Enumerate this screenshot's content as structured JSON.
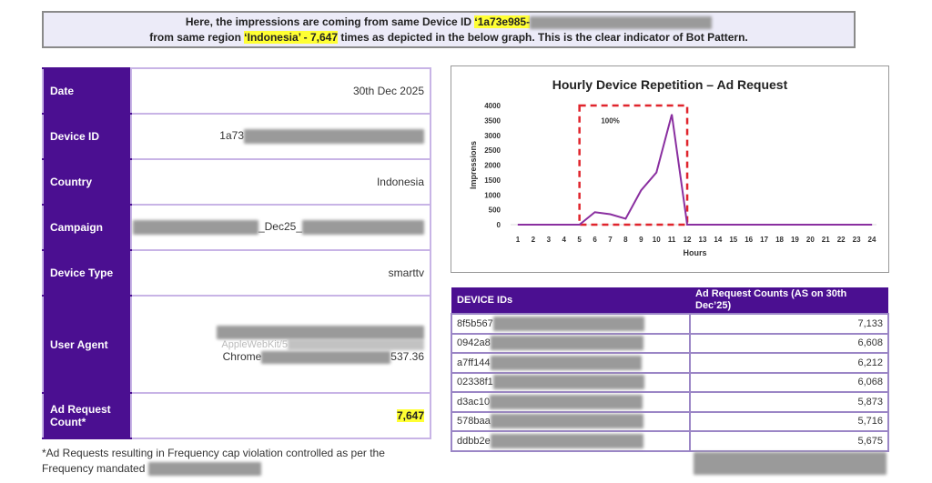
{
  "banner": {
    "line1_prefix": "Here, the impressions are coming from same Device ID ",
    "device_id": "‘1a73e985-",
    "line2_prefix": "from same region ",
    "region": "‘Indonesia’  - 7,647",
    "line2_suffix": " times as depicted in the below graph. This is the clear indicator of Bot Pattern."
  },
  "info": {
    "rows": [
      {
        "label": "Date",
        "value": "30th Dec 2025"
      },
      {
        "label": "Device ID",
        "value": "1a73"
      },
      {
        "label": "Country",
        "value": "Indonesia"
      },
      {
        "label": "Campaign",
        "value": "_Dec25_"
      },
      {
        "label": "Device Type",
        "value": "smarttv"
      },
      {
        "label": "User Agent",
        "value_line2": "AppleWebKit/5",
        "value_line3a": "Chrome",
        "value_line3b": "537.36"
      },
      {
        "label": "Ad Request Count*",
        "value": "7,647"
      }
    ]
  },
  "footnote": "*Ad Requests resulting in Frequency cap violation controlled as per the Frequency mandated",
  "chart_data": {
    "type": "line",
    "title": "Hourly Device Repetition – Ad Request",
    "xlabel": "Hours",
    "ylabel": "Impressions",
    "x": [
      1,
      2,
      3,
      4,
      5,
      6,
      7,
      8,
      9,
      10,
      11,
      12,
      13,
      14,
      15,
      16,
      17,
      18,
      19,
      20,
      21,
      22,
      23,
      24
    ],
    "series": [
      {
        "name": "Impressions",
        "color": "#8a2fa0",
        "values": [
          0,
          0,
          0,
          0,
          0,
          420,
          350,
          200,
          1150,
          1750,
          3700,
          0,
          0,
          0,
          0,
          0,
          0,
          0,
          0,
          0,
          0,
          0,
          0,
          0
        ]
      }
    ],
    "ylim": [
      0,
      4000
    ],
    "yticks": [
      0,
      500,
      1000,
      1500,
      2000,
      2500,
      3000,
      3500,
      4000
    ],
    "annotation": {
      "text": "100%",
      "x_range": [
        5,
        12
      ],
      "y_range": [
        0,
        4000
      ],
      "color": "#e0242c"
    }
  },
  "device_table": {
    "headers": [
      "DEVICE IDs",
      "Ad Request Counts (AS on 30th Dec’25)"
    ],
    "rows": [
      [
        "8f5b567",
        "7,133"
      ],
      [
        "0942a8",
        "6,608"
      ],
      [
        "a7ff144",
        "6,212"
      ],
      [
        "02338f1",
        "6,068"
      ],
      [
        "d3ac10",
        "5,873"
      ],
      [
        "578baa",
        "5,716"
      ],
      [
        "ddbb2e",
        "5,675"
      ]
    ]
  }
}
